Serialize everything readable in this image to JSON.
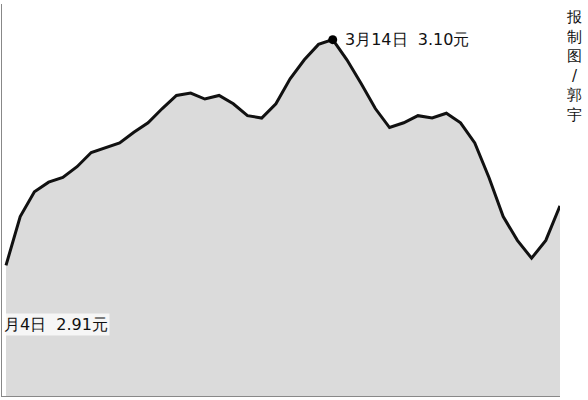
{
  "chart_data": {
    "type": "line",
    "categories": [
      null,
      null,
      null,
      null,
      null,
      null,
      null,
      null,
      null,
      null,
      null,
      null,
      null,
      null,
      null,
      null,
      null,
      null,
      null,
      null,
      null,
      null,
      null,
      null,
      null,
      null,
      null,
      null,
      null,
      null,
      null,
      null,
      null,
      null,
      null,
      null,
      null,
      null,
      null,
      null
    ],
    "values": [
      2.91,
      2.951,
      2.972,
      2.98,
      2.984,
      2.993,
      3.005,
      3.009,
      3.013,
      3.022,
      3.03,
      3.042,
      3.053,
      3.055,
      3.05,
      3.053,
      3.046,
      3.036,
      3.034,
      3.046,
      3.067,
      3.083,
      3.096,
      3.1,
      3.083,
      3.063,
      3.042,
      3.026,
      3.03,
      3.036,
      3.034,
      3.038,
      3.03,
      3.013,
      2.984,
      2.951,
      2.931,
      2.916,
      2.931,
      2.96
    ],
    "color": "#111111",
    "ylim": [
      2.8,
      3.13
    ],
    "tick_labels": false,
    "grid": false,
    "annotations": [
      {
        "text": "3月14日  3.10元",
        "at": 23
      },
      {
        "text": "月4日  2.91元",
        "at": 0
      }
    ],
    "credit": "报制图/郭宇"
  }
}
